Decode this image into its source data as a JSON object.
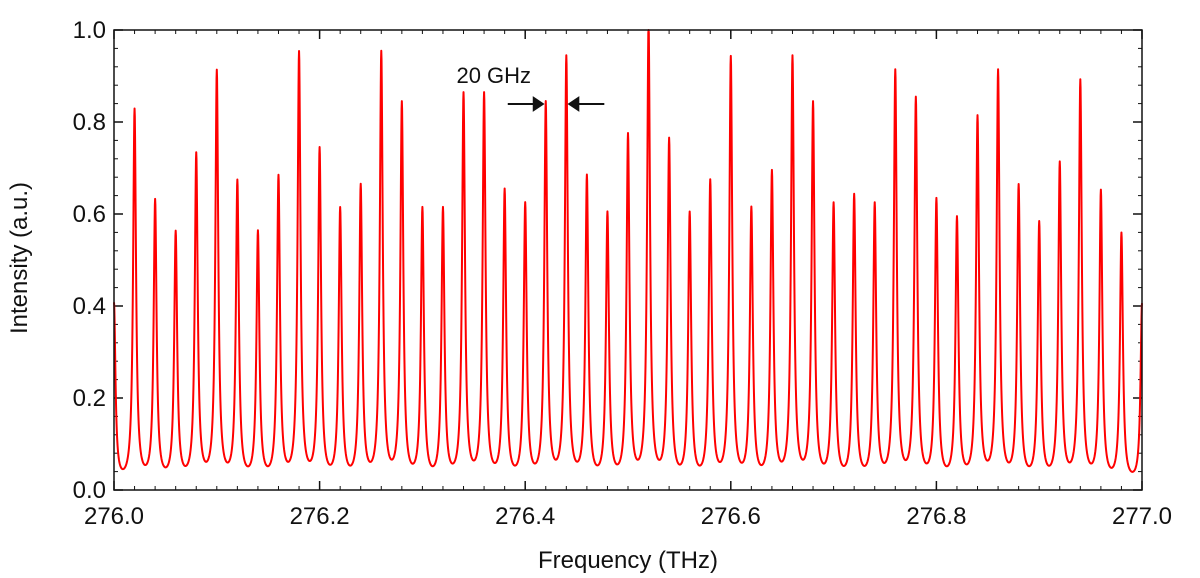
{
  "chart_data": {
    "type": "line",
    "xlabel": "Frequency (THz)",
    "ylabel": "Intensity (a.u.)",
    "xlim": [
      276.0,
      277.0
    ],
    "ylim": [
      0.0,
      1.0
    ],
    "x_ticks": [
      "276.0",
      "276.2",
      "276.4",
      "276.6",
      "276.8",
      "277.0"
    ],
    "x_tick_values": [
      276.0,
      276.2,
      276.4,
      276.6,
      276.8,
      277.0
    ],
    "y_ticks": [
      "0.0",
      "0.2",
      "0.4",
      "0.6",
      "0.8",
      "1.0"
    ],
    "y_tick_values": [
      0.0,
      0.2,
      0.4,
      0.6,
      0.8,
      1.0
    ],
    "grid": false,
    "line_color": "#ff0000",
    "baseline": 0.01,
    "line_spacing_thz": 0.02,
    "peaks": {
      "x": [
        276.0,
        276.02,
        276.04,
        276.06,
        276.08,
        276.1,
        276.12,
        276.14,
        276.16,
        276.18,
        276.2,
        276.22,
        276.24,
        276.26,
        276.28,
        276.3,
        276.32,
        276.34,
        276.36,
        276.38,
        276.4,
        276.42,
        276.44,
        276.46,
        276.48,
        276.5,
        276.52,
        276.54,
        276.56,
        276.58,
        276.6,
        276.62,
        276.64,
        276.66,
        276.68,
        276.7,
        276.72,
        276.74,
        276.76,
        276.78,
        276.8,
        276.82,
        276.84,
        276.86,
        276.88,
        276.9,
        276.92,
        276.94,
        276.96,
        276.98,
        277.0
      ],
      "y": [
        0.4,
        0.82,
        0.62,
        0.55,
        0.72,
        0.9,
        0.66,
        0.55,
        0.67,
        0.94,
        0.73,
        0.6,
        0.65,
        0.94,
        0.83,
        0.6,
        0.6,
        0.85,
        0.85,
        0.64,
        0.61,
        0.83,
        0.93,
        0.67,
        0.59,
        0.76,
        1.0,
        0.75,
        0.59,
        0.66,
        0.93,
        0.6,
        0.68,
        0.93,
        0.83,
        0.61,
        0.63,
        0.61,
        0.9,
        0.84,
        0.62,
        0.58,
        0.8,
        0.9,
        0.65,
        0.57,
        0.7,
        0.88,
        0.64,
        0.55,
        0.4
      ]
    },
    "annotation": {
      "text": "20 GHz",
      "x_left": 276.42,
      "x_right": 276.44
    }
  }
}
